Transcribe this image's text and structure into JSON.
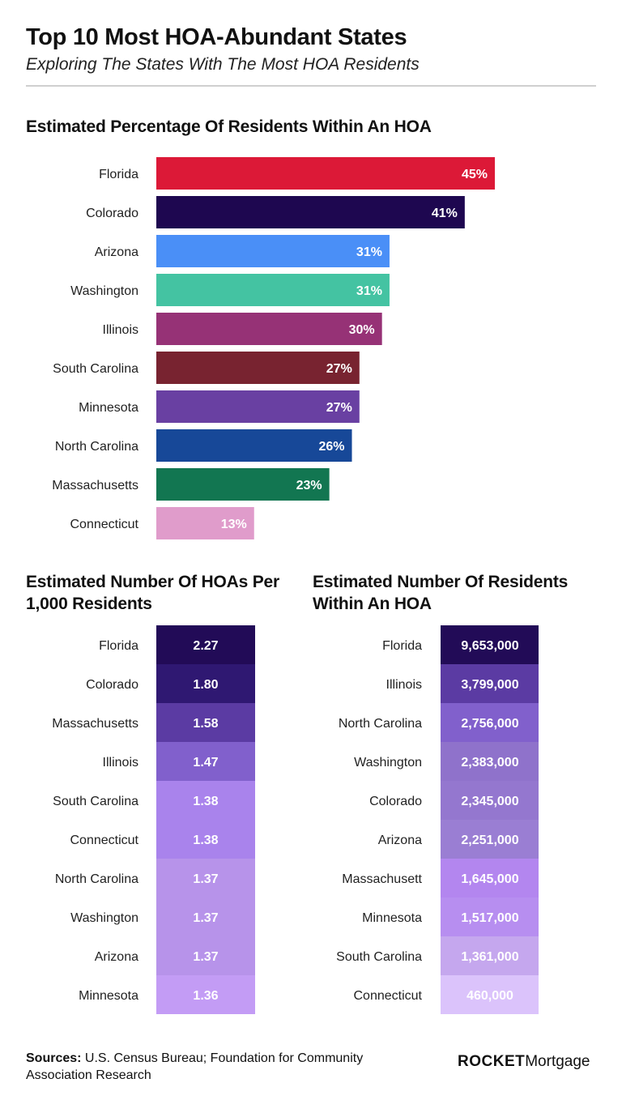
{
  "header": {
    "title": "Top 10 Most HOA-Abundant States",
    "subtitle": "Exploring The States With The Most HOA Residents"
  },
  "footer": {
    "sources_label": "Sources:",
    "sources_text": "U.S. Census Bureau; Foundation for Community Association Research",
    "logo_rocket": "ROCKET",
    "logo_mortgage": "Mortgage"
  },
  "chart_data": [
    {
      "type": "bar",
      "orientation": "horizontal",
      "title": "Estimated Percentage Of Residents Within An HOA",
      "categories": [
        "Florida",
        "Colorado",
        "Arizona",
        "Washington",
        "Illinois",
        "South Carolina",
        "Minnesota",
        "North Carolina",
        "Massachusetts",
        "Connecticut"
      ],
      "values": [
        45,
        41,
        31,
        31,
        30,
        27,
        27,
        26,
        23,
        13
      ],
      "labels": [
        "45%",
        "41%",
        "31%",
        "31%",
        "30%",
        "27%",
        "27%",
        "26%",
        "23%",
        "13%"
      ],
      "colors": [
        "#dc1937",
        "#1e0750",
        "#4a8ff7",
        "#44c3a2",
        "#963276",
        "#782330",
        "#6940a2",
        "#174898",
        "#127651",
        "#e09ccb"
      ],
      "unit": "%",
      "grid": false,
      "legend": "none"
    },
    {
      "type": "table",
      "title": "Estimated Number Of HOAs Per 1,000 Residents",
      "categories": [
        "Florida",
        "Colorado",
        "Massachusetts",
        "Illinois",
        "South Carolina",
        "Connecticut",
        "North Carolina",
        "Washington",
        "Arizona",
        "Minnesota"
      ],
      "values": [
        2.27,
        1.8,
        1.58,
        1.47,
        1.38,
        1.38,
        1.37,
        1.37,
        1.37,
        1.36
      ],
      "labels": [
        "2.27",
        "1.80",
        "1.58",
        "1.47",
        "1.38",
        "1.38",
        "1.37",
        "1.37",
        "1.37",
        "1.36"
      ],
      "colors": [
        "#220b57",
        "#2f1872",
        "#5b3ba3",
        "#8160cc",
        "#a983ec",
        "#a983ec",
        "#b793ea",
        "#b793ea",
        "#b793ea",
        "#c39cf5"
      ]
    },
    {
      "type": "table",
      "title": "Estimated Number Of Residents Within An HOA",
      "categories": [
        "Florida",
        "Illinois",
        "North Carolina",
        "Washington",
        "Colorado",
        "Arizona",
        "Massachusett",
        "Minnesota",
        "South Carolina",
        "Connecticut"
      ],
      "values": [
        9653000,
        3799000,
        2756000,
        2383000,
        2345000,
        2251000,
        1645000,
        1517000,
        1361000,
        460000
      ],
      "labels": [
        "9,653,000",
        "3,799,000",
        "2,756,000",
        "2,383,000",
        "2,345,000",
        "2,251,000",
        "1,645,000",
        "1,517,000",
        "1,361,000",
        "460,000"
      ],
      "colors": [
        "#220b57",
        "#5b3ba3",
        "#8160cc",
        "#8f72cb",
        "#9477cf",
        "#9a7ed3",
        "#b386ef",
        "#b78ef0",
        "#c5a7ee",
        "#dbc3fb"
      ]
    }
  ]
}
